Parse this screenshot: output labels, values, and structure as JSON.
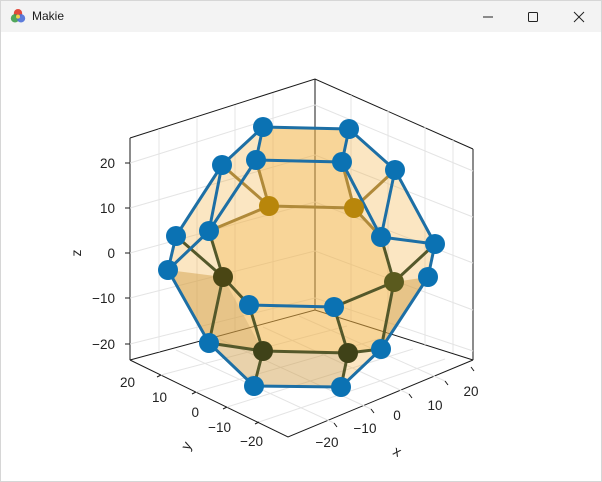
{
  "window": {
    "title": "Makie",
    "icons": {
      "app": "makie-logo-icon",
      "minimize": "minimize-icon",
      "maximize": "maximize-icon",
      "close": "close-icon"
    }
  },
  "axis3d": {
    "xlabel": "x",
    "ylabel": "y",
    "zlabel": "z",
    "xticks": [
      "−20",
      "−10",
      "0",
      "10",
      "20"
    ],
    "yticks": [
      "20",
      "10",
      "0",
      "−10",
      "−20"
    ],
    "zticks": [
      "20",
      "10",
      "0",
      "−10",
      "−20"
    ]
  },
  "colors": {
    "face_fill": "#f2b142",
    "edge": "#1d6fa5",
    "vertex": "#0b72b3",
    "hidden_vertex": "#b8860b",
    "hidden_vertex_dark": "#4a4614"
  }
}
